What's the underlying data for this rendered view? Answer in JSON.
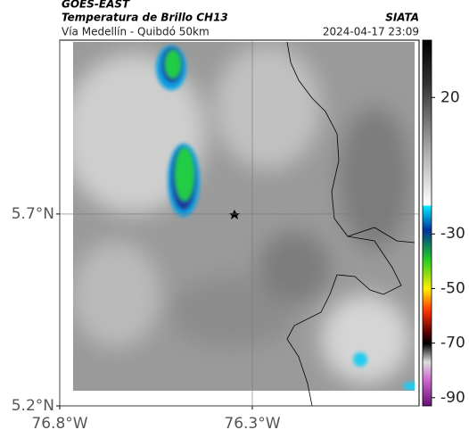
{
  "header": {
    "satellite": "GOES-EAST",
    "product": "Temperatura de Brillo CH13",
    "region": "Vía Medellín - Quibdó 50km",
    "source": "SIATA",
    "timestamp": "2024-04-17 23:09"
  },
  "map": {
    "xlim": [
      -76.8,
      -75.867
    ],
    "ylim": [
      5.2,
      6.153
    ],
    "xticks": [
      {
        "value": -76.8,
        "label": "76.8°W"
      },
      {
        "value": -76.3,
        "label": "76.3°W"
      }
    ],
    "yticks": [
      {
        "value": 5.2,
        "label": "5.2°N"
      },
      {
        "value": 5.7,
        "label": "5.7°N"
      }
    ],
    "grid": true
  },
  "colorbar": {
    "lim": [
      -93,
      41
    ],
    "ticks": [
      20,
      -30,
      -50,
      -70,
      -90
    ]
  }
}
